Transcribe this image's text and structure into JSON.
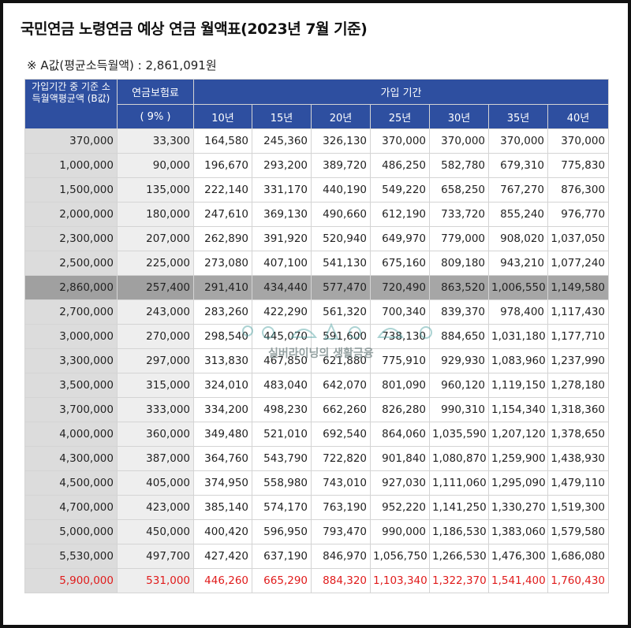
{
  "title": "국민연금 노령연금 예상 연금 월액표(2023년 7월 기준)",
  "subtitle": "※ A값(평균소득월액) : 2,861,091원",
  "header": {
    "base_label": "가입기간 중 기준 소득월액평균액 (B값)",
    "premium_label": "연금보험료",
    "premium_rate": "( 9% )",
    "period_label": "가입 기간",
    "periods": [
      "10년",
      "15년",
      "20년",
      "25년",
      "30년",
      "35년",
      "40년"
    ]
  },
  "rows": [
    [
      "370,000",
      "33,300",
      "164,580",
      "245,360",
      "326,130",
      "370,000",
      "370,000",
      "370,000",
      "370,000"
    ],
    [
      "1,000,000",
      "90,000",
      "196,670",
      "293,200",
      "389,720",
      "486,250",
      "582,780",
      "679,310",
      "775,830"
    ],
    [
      "1,500,000",
      "135,000",
      "222,140",
      "331,170",
      "440,190",
      "549,220",
      "658,250",
      "767,270",
      "876,300"
    ],
    [
      "2,000,000",
      "180,000",
      "247,610",
      "369,130",
      "490,660",
      "612,190",
      "733,720",
      "855,240",
      "976,770"
    ],
    [
      "2,300,000",
      "207,000",
      "262,890",
      "391,920",
      "520,940",
      "649,970",
      "779,000",
      "908,020",
      "1,037,050"
    ],
    [
      "2,500,000",
      "225,000",
      "273,080",
      "407,100",
      "541,130",
      "675,160",
      "809,180",
      "943,210",
      "1,077,240"
    ],
    [
      "2,860,000",
      "257,400",
      "291,410",
      "434,440",
      "577,470",
      "720,490",
      "863,520",
      "1,006,550",
      "1,149,580"
    ],
    [
      "2,700,000",
      "243,000",
      "283,260",
      "422,290",
      "561,320",
      "700,340",
      "839,370",
      "978,400",
      "1,117,430"
    ],
    [
      "3,000,000",
      "270,000",
      "298,540",
      "445,070",
      "591,600",
      "738,130",
      "884,650",
      "1,031,180",
      "1,177,710"
    ],
    [
      "3,300,000",
      "297,000",
      "313,830",
      "467,850",
      "621,880",
      "775,910",
      "929,930",
      "1,083,960",
      "1,237,990"
    ],
    [
      "3,500,000",
      "315,000",
      "324,010",
      "483,040",
      "642,070",
      "801,090",
      "960,120",
      "1,119,150",
      "1,278,180"
    ],
    [
      "3,700,000",
      "333,000",
      "334,200",
      "498,230",
      "662,260",
      "826,280",
      "990,310",
      "1,154,340",
      "1,318,360"
    ],
    [
      "4,000,000",
      "360,000",
      "349,480",
      "521,010",
      "692,540",
      "864,060",
      "1,035,590",
      "1,207,120",
      "1,378,650"
    ],
    [
      "4,300,000",
      "387,000",
      "364,760",
      "543,790",
      "722,820",
      "901,840",
      "1,080,870",
      "1,259,900",
      "1,438,930"
    ],
    [
      "4,500,000",
      "405,000",
      "374,950",
      "558,980",
      "743,010",
      "927,030",
      "1,111,060",
      "1,295,090",
      "1,479,110"
    ],
    [
      "4,700,000",
      "423,000",
      "385,140",
      "574,170",
      "763,190",
      "952,220",
      "1,141,250",
      "1,330,270",
      "1,519,300"
    ],
    [
      "5,000,000",
      "450,000",
      "400,420",
      "596,950",
      "793,470",
      "990,000",
      "1,186,530",
      "1,383,060",
      "1,579,580"
    ],
    [
      "5,530,000",
      "497,700",
      "427,420",
      "637,190",
      "846,970",
      "1,056,750",
      "1,266,530",
      "1,476,300",
      "1,686,080"
    ],
    [
      "5,900,000",
      "531,000",
      "446,260",
      "665,290",
      "884,320",
      "1,103,340",
      "1,322,370",
      "1,541,400",
      "1,760,430"
    ]
  ],
  "highlight_row_index": 6,
  "red_row_index": 18,
  "watermark": "실버라이닝의 생활금융",
  "colors": {
    "header": "#2e4fa0",
    "highlight": "#a6a6a6",
    "red": "#e01b1b"
  }
}
